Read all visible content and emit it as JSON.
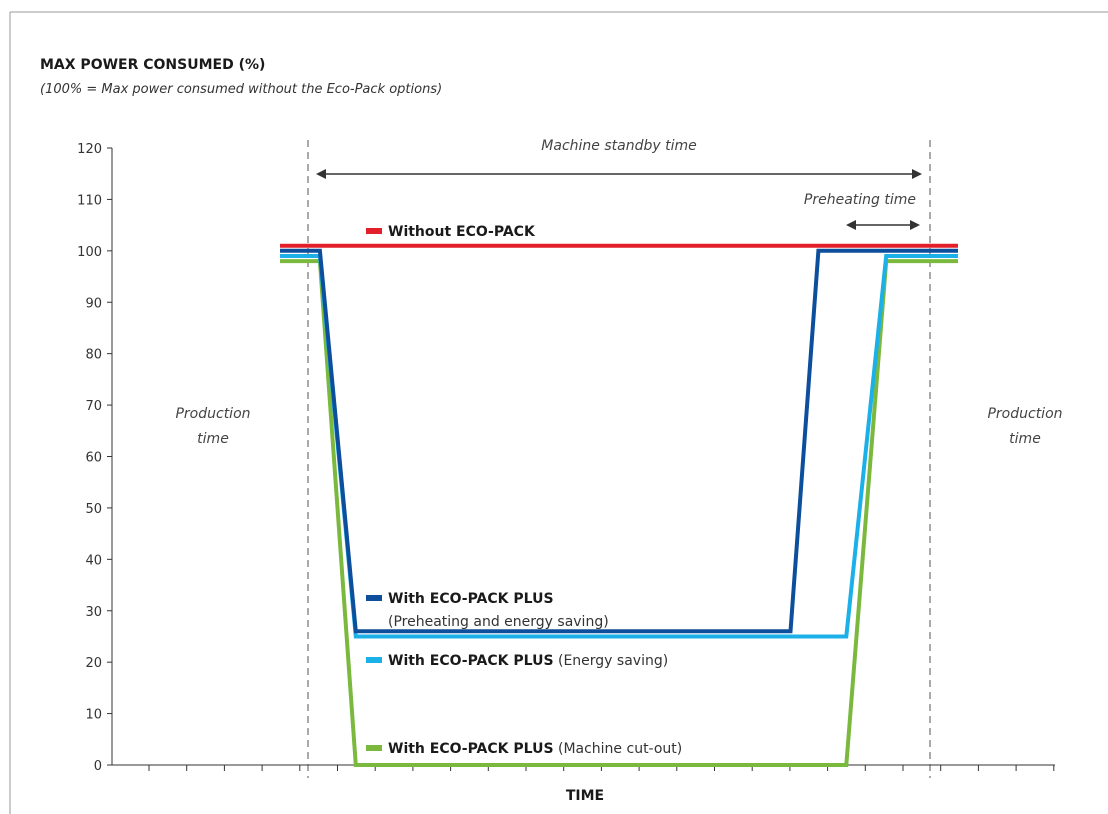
{
  "chart_data": {
    "type": "line",
    "title": "MAX POWER CONSUMED (%)",
    "subtitle": "(100% = Max power consumed without the Eco-Pack options)",
    "xlabel": "TIME",
    "ylabel": "",
    "ylim": [
      0,
      120
    ],
    "yticks": [
      "0",
      "10",
      "20",
      "30",
      "40",
      "50",
      "60",
      "70",
      "80",
      "90",
      "100",
      "110",
      "120"
    ],
    "grid": false,
    "annotations": {
      "standby": "Machine standby time",
      "preheating": "Preheating time",
      "production_left": [
        "Production",
        "time"
      ],
      "production_right": [
        "Production",
        "time"
      ]
    },
    "series": [
      {
        "name": "Without ECO-PACK",
        "note": "",
        "color": "#e3202a",
        "points": [
          [
            0,
            101
          ],
          [
            17,
            101
          ]
        ]
      },
      {
        "name": "With ECO-PACK PLUS",
        "note": "(Preheating and energy saving)",
        "color": "#0d4f9c",
        "points": [
          [
            0,
            100
          ],
          [
            1,
            100
          ],
          [
            1.9,
            26
          ],
          [
            12.8,
            26
          ],
          [
            13.5,
            100
          ],
          [
            17,
            100
          ]
        ]
      },
      {
        "name": "With ECO-PACK PLUS",
        "note": "(Energy saving)",
        "color": "#1cb0e8",
        "points": [
          [
            0,
            99
          ],
          [
            1,
            99
          ],
          [
            1.9,
            25
          ],
          [
            14.2,
            25
          ],
          [
            15.2,
            99
          ],
          [
            17,
            99
          ]
        ]
      },
      {
        "name": "With ECO-PACK PLUS",
        "note": "(Machine cut-out)",
        "color": "#7ab93e",
        "points": [
          [
            0,
            98
          ],
          [
            1,
            98
          ],
          [
            1.9,
            0
          ],
          [
            14.2,
            0
          ],
          [
            15.2,
            98
          ],
          [
            17,
            98
          ]
        ]
      }
    ]
  }
}
